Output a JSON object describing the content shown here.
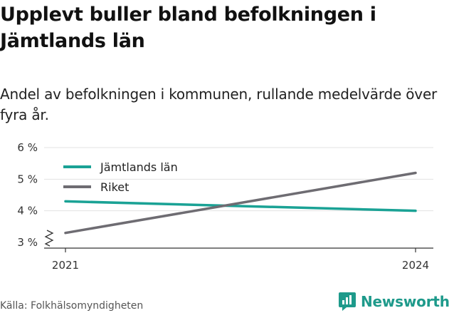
{
  "header": {
    "title": "Upplevt buller bland befolkningen i Jämtlands län",
    "subtitle": "Andel av befolkningen i kommunen, rullande medelvärde över fyra år."
  },
  "footer": {
    "source": "Källa: Folkhälsomyndigheten",
    "brand": "Newsworthy",
    "brand_color": "#1e9a8b"
  },
  "chart_data": {
    "type": "line",
    "x": [
      2021,
      2024
    ],
    "series": [
      {
        "name": "Jämtlands län",
        "values": [
          4.3,
          4.0
        ],
        "color": "#1aa295"
      },
      {
        "name": "Riket",
        "values": [
          3.3,
          5.2
        ],
        "color": "#6e6c72"
      }
    ],
    "xticks": [
      "2021",
      "2024"
    ],
    "yticks": [
      "3 %",
      "4 %",
      "5 %",
      "6 %"
    ],
    "ylim": [
      3,
      6
    ],
    "xlim": [
      2021,
      2024
    ],
    "grid": true,
    "legend": "top-left",
    "y_axis_break": true
  }
}
